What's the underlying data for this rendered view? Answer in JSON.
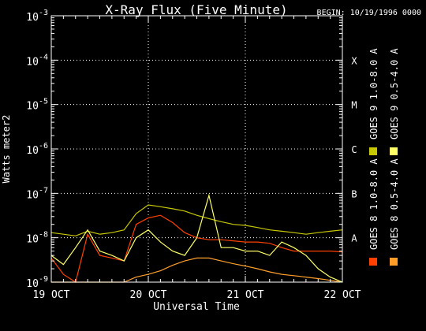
{
  "chart_data": {
    "type": "line",
    "title": "X-Ray Flux (Five Minute)",
    "begin_label": "BEGIN: 10/19/1996 0000",
    "xlabel": "Universal Time",
    "ylabel": "Watts meter2",
    "y_scale": "log",
    "ylim": [
      1e-09,
      0.001
    ],
    "xlim": [
      "1996-10-19 00:00",
      "1996-10-22 00:00"
    ],
    "x_ticks": [
      {
        "label": "19 OCT",
        "t": "1996-10-19 00:00"
      },
      {
        "label": "20 OCT",
        "t": "1996-10-20 00:00"
      },
      {
        "label": "21 OCT",
        "t": "1996-10-21 00:00"
      },
      {
        "label": "22 OCT",
        "t": "1996-10-22 00:00"
      }
    ],
    "y_ticks": [
      {
        "base": "10",
        "exp": "-9",
        "value": 1e-09
      },
      {
        "base": "10",
        "exp": "-8",
        "value": 1e-08
      },
      {
        "base": "10",
        "exp": "-7",
        "value": 1e-07
      },
      {
        "base": "10",
        "exp": "-6",
        "value": 1e-06
      },
      {
        "base": "10",
        "exp": "-5",
        "value": 1e-05
      },
      {
        "base": "10",
        "exp": "-4",
        "value": 0.0001
      },
      {
        "base": "10",
        "exp": "-3",
        "value": 0.001
      }
    ],
    "flare_classes": [
      {
        "label": "A",
        "value": 1e-08
      },
      {
        "label": "B",
        "value": 1e-07
      },
      {
        "label": "C",
        "value": 1e-06
      },
      {
        "label": "M",
        "value": 1e-05
      },
      {
        "label": "X",
        "value": 0.0001
      }
    ],
    "grid": "dotted",
    "legend_position": "right (vertical)",
    "series": [
      {
        "name": "GOES 8 1.0-8.0 A",
        "color": "#ff4000",
        "x": [
          "1996-10-19 00:00",
          "1996-10-19 03:00",
          "1996-10-19 06:00",
          "1996-10-19 09:00",
          "1996-10-19 12:00",
          "1996-10-19 15:00",
          "1996-10-19 18:00",
          "1996-10-19 21:00",
          "1996-10-20 00:00",
          "1996-10-20 03:00",
          "1996-10-20 06:00",
          "1996-10-20 09:00",
          "1996-10-20 12:00",
          "1996-10-20 15:00",
          "1996-10-20 18:00",
          "1996-10-20 21:00",
          "1996-10-21 00:00",
          "1996-10-21 03:00",
          "1996-10-21 06:00",
          "1996-10-21 09:00",
          "1996-10-21 12:00",
          "1996-10-21 15:00",
          "1996-10-21 18:00",
          "1996-10-21 21:00",
          "1996-10-22 00:00"
        ],
        "y": [
          3.5e-09,
          1.5e-09,
          1e-09,
          1.2e-08,
          4e-09,
          3.5e-09,
          3e-09,
          2e-08,
          2.8e-08,
          3.2e-08,
          2.2e-08,
          1.3e-08,
          1e-08,
          9e-09,
          9e-09,
          8.5e-09,
          8e-09,
          8e-09,
          7.5e-09,
          6e-09,
          5e-09,
          5e-09,
          5e-09,
          5e-09,
          4.8e-09
        ]
      },
      {
        "name": "GOES 8 0.5-4.0 A",
        "color": "#ff9f2a",
        "x": [
          "1996-10-19 00:00",
          "1996-10-19 03:00",
          "1996-10-19 06:00",
          "1996-10-19 09:00",
          "1996-10-19 12:00",
          "1996-10-19 15:00",
          "1996-10-19 18:00",
          "1996-10-19 21:00",
          "1996-10-20 00:00",
          "1996-10-20 03:00",
          "1996-10-20 06:00",
          "1996-10-20 09:00",
          "1996-10-20 12:00",
          "1996-10-20 15:00",
          "1996-10-20 18:00",
          "1996-10-20 21:00",
          "1996-10-21 00:00",
          "1996-10-21 03:00",
          "1996-10-21 06:00",
          "1996-10-21 09:00",
          "1996-10-21 12:00",
          "1996-10-21 15:00",
          "1996-10-21 18:00",
          "1996-10-21 21:00",
          "1996-10-22 00:00"
        ],
        "y": [
          1e-09,
          1e-09,
          1e-09,
          1e-09,
          1e-09,
          1e-09,
          1e-09,
          1.3e-09,
          1.5e-09,
          1.8e-09,
          2.4e-09,
          3e-09,
          3.5e-09,
          3.5e-09,
          3e-09,
          2.6e-09,
          2.3e-09,
          2e-09,
          1.7e-09,
          1.5e-09,
          1.4e-09,
          1.3e-09,
          1.2e-09,
          1.1e-09,
          1e-09
        ]
      },
      {
        "name": "GOES 9 1.0-8.0 A",
        "color": "#c8c800",
        "x": [
          "1996-10-19 00:00",
          "1996-10-19 03:00",
          "1996-10-19 06:00",
          "1996-10-19 09:00",
          "1996-10-19 12:00",
          "1996-10-19 15:00",
          "1996-10-19 18:00",
          "1996-10-19 21:00",
          "1996-10-20 00:00",
          "1996-10-20 03:00",
          "1996-10-20 06:00",
          "1996-10-20 09:00",
          "1996-10-20 12:00",
          "1996-10-20 15:00",
          "1996-10-20 18:00",
          "1996-10-20 21:00",
          "1996-10-21 00:00",
          "1996-10-21 03:00",
          "1996-10-21 06:00",
          "1996-10-21 09:00",
          "1996-10-21 12:00",
          "1996-10-21 15:00",
          "1996-10-21 18:00",
          "1996-10-21 21:00",
          "1996-10-22 00:00"
        ],
        "y": [
          1.3e-08,
          1.2e-08,
          1.1e-08,
          1.4e-08,
          1.2e-08,
          1.3e-08,
          1.5e-08,
          3.5e-08,
          5.5e-08,
          5e-08,
          4.5e-08,
          4e-08,
          3.2e-08,
          2.7e-08,
          2.3e-08,
          2e-08,
          1.9e-08,
          1.7e-08,
          1.5e-08,
          1.4e-08,
          1.3e-08,
          1.2e-08,
          1.3e-08,
          1.4e-08,
          1.5e-08
        ]
      },
      {
        "name": "GOES 9 0.5-4.0 A",
        "color": "#ffff66",
        "x": [
          "1996-10-19 00:00",
          "1996-10-19 03:00",
          "1996-10-19 06:00",
          "1996-10-19 09:00",
          "1996-10-19 12:00",
          "1996-10-19 15:00",
          "1996-10-19 18:00",
          "1996-10-19 21:00",
          "1996-10-20 00:00",
          "1996-10-20 03:00",
          "1996-10-20 06:00",
          "1996-10-20 09:00",
          "1996-10-20 12:00",
          "1996-10-20 15:00",
          "1996-10-20 18:00",
          "1996-10-20 21:00",
          "1996-10-21 00:00",
          "1996-10-21 03:00",
          "1996-10-21 06:00",
          "1996-10-21 09:00",
          "1996-10-21 12:00",
          "1996-10-21 15:00",
          "1996-10-21 18:00",
          "1996-10-21 21:00",
          "1996-10-22 00:00"
        ],
        "y": [
          4e-09,
          2.5e-09,
          6e-09,
          1.5e-08,
          5e-09,
          4e-09,
          3e-09,
          1e-08,
          1.5e-08,
          8e-09,
          5e-09,
          4e-09,
          1e-08,
          9e-08,
          6e-09,
          6e-09,
          5e-09,
          5e-09,
          4e-09,
          8e-09,
          6e-09,
          4e-09,
          2e-09,
          1.3e-09,
          1e-09
        ]
      }
    ]
  }
}
